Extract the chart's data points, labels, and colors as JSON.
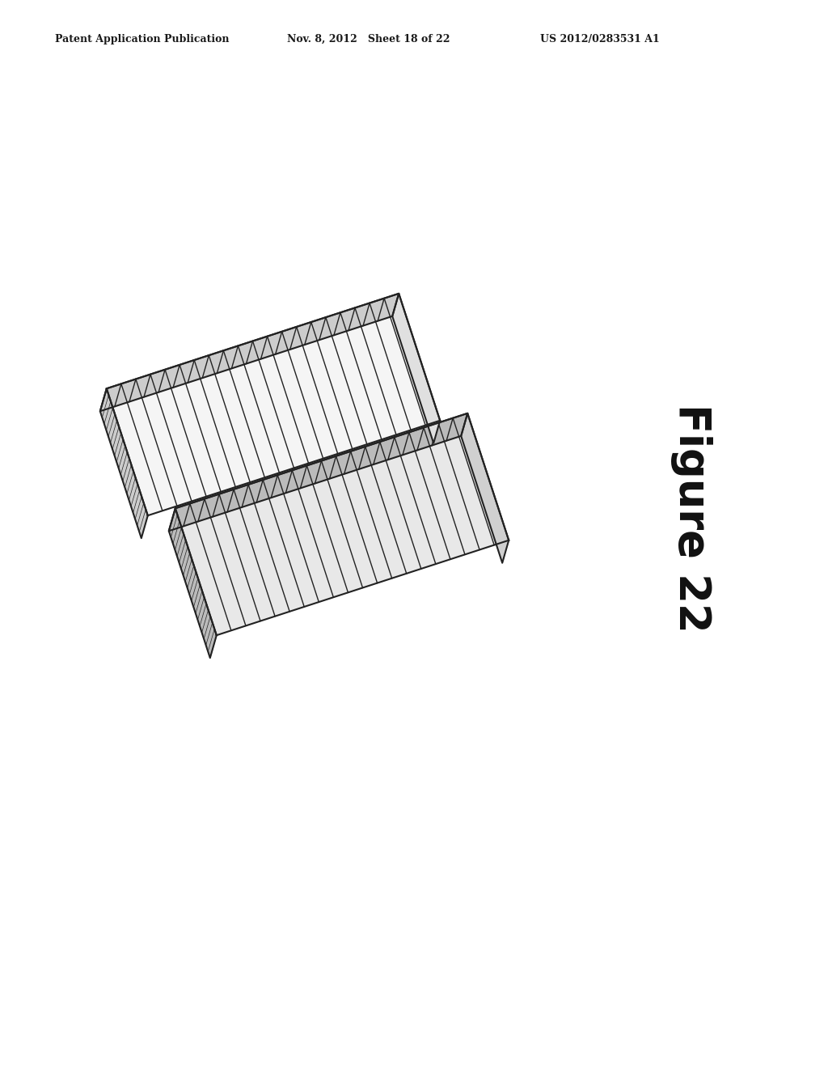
{
  "bg_color": "#ffffff",
  "header_left": "Patent Application Publication",
  "header_mid": "Nov. 8, 2012   Sheet 18 of 22",
  "header_right": "US 2012/0283531 A1",
  "figure_label": "Figure 22",
  "header_fontsize": 9,
  "figure_label_fontsize": 38,
  "line_color": "#222222",
  "fill_top_upper": "#f5f5f5",
  "fill_top_lower": "#e8e8e8",
  "fill_right_upper": "#e0e0e0",
  "fill_right_lower": "#d0d0d0",
  "fill_front_upper": "#cccccc",
  "fill_front_lower": "#bbbbbb",
  "rib_count": 20,
  "panel_lw": 1.5,
  "rib_lw": 1.0
}
